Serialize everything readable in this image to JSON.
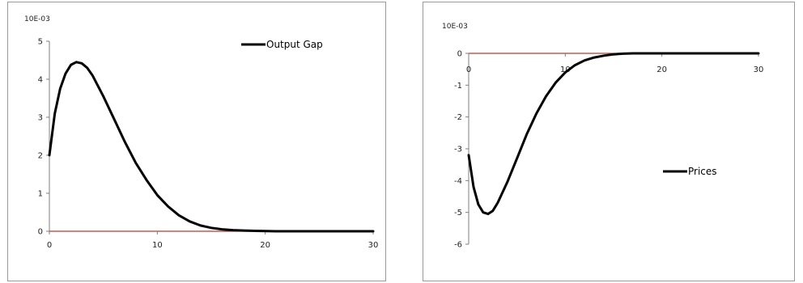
{
  "chart_data": [
    {
      "type": "line",
      "unit_label": "10E-03",
      "xlim": [
        0,
        30
      ],
      "ylim": [
        0,
        5
      ],
      "x_ticks": [
        "0",
        "10",
        "20",
        "30"
      ],
      "y_ticks": [
        "0",
        "1",
        "2",
        "3",
        "4",
        "5"
      ],
      "legend_position": "top-right",
      "grid": false,
      "series": [
        {
          "name": "Output Gap",
          "color": "#000000",
          "x": [
            0,
            0.5,
            1,
            1.5,
            2,
            2.5,
            3,
            3.5,
            4,
            5,
            6,
            7,
            8,
            9,
            10,
            11,
            12,
            13,
            14,
            15,
            16,
            17,
            18,
            19,
            20,
            21,
            22,
            24,
            26,
            28,
            30
          ],
          "y": [
            2.0,
            3.1,
            3.75,
            4.15,
            4.38,
            4.45,
            4.42,
            4.3,
            4.1,
            3.55,
            2.95,
            2.35,
            1.8,
            1.35,
            0.95,
            0.65,
            0.42,
            0.26,
            0.15,
            0.09,
            0.05,
            0.03,
            0.02,
            0.01,
            0.005,
            0.0,
            0.0,
            0.0,
            0.0,
            0.0,
            0.0
          ]
        }
      ],
      "zero_line_color": "#c0392b"
    },
    {
      "type": "line",
      "unit_label": "10E-03",
      "xlim": [
        0,
        30
      ],
      "ylim": [
        -6,
        0
      ],
      "x_ticks": [
        "0",
        "10",
        "20",
        "30"
      ],
      "y_ticks": [
        "0",
        "-1",
        "-2",
        "-3",
        "-4",
        "-5",
        "-6"
      ],
      "legend_position": "center-right",
      "grid": false,
      "series": [
        {
          "name": "Prices",
          "color": "#000000",
          "x": [
            0,
            0.5,
            1,
            1.5,
            2,
            2.5,
            3,
            4,
            5,
            6,
            7,
            8,
            9,
            10,
            11,
            12,
            13,
            14,
            15,
            16,
            17,
            18,
            19,
            20,
            22,
            24,
            26,
            28,
            30
          ],
          "y": [
            -3.2,
            -4.2,
            -4.75,
            -5.0,
            -5.05,
            -4.95,
            -4.7,
            -4.05,
            -3.3,
            -2.55,
            -1.9,
            -1.35,
            -0.92,
            -0.6,
            -0.37,
            -0.22,
            -0.13,
            -0.07,
            -0.03,
            -0.01,
            0.0,
            0.0,
            0.0,
            0.0,
            0.0,
            0.0,
            0.0,
            0.0,
            0.0
          ]
        }
      ],
      "zero_line_color": "#c0392b"
    }
  ]
}
